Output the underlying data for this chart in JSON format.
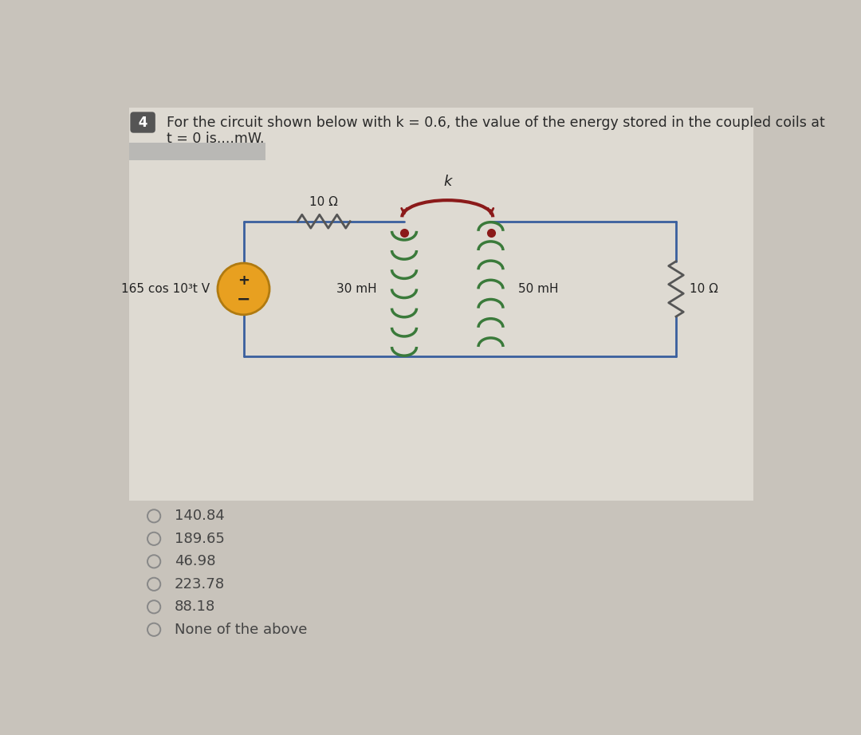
{
  "bg_color": "#c8c3bb",
  "circuit_bg": "#dedad2",
  "title_text": "For the circuit shown below with k = 0.6, the value of the energy stored in the coupled coils at\nt = 0 is....mW.",
  "title_fontsize": 12.5,
  "title_color": "#2a2a2a",
  "question_number": "4",
  "source_label": "165 cos 10³t V",
  "r1_label": "10 Ω",
  "l1_label": "30 mH",
  "l2_label": "50 mH",
  "r2_label": "10 Ω",
  "k_label": "k",
  "options": [
    "140.84",
    "189.65",
    "46.98",
    "223.78",
    "88.18",
    "None of the above"
  ],
  "option_color": "#444444",
  "option_fontsize": 13,
  "wire_color": "#3a5f9e",
  "wire_lw": 2.0,
  "resistor_color": "#555555",
  "inductor1_color": "#3a7a3a",
  "inductor2_color": "#3a7a3a",
  "coupling_color": "#8b1a1a",
  "source_fill": "#e8a020",
  "source_edge": "#b07a10",
  "dot_color": "#8b1a1a",
  "qnum_bg": "#555555"
}
